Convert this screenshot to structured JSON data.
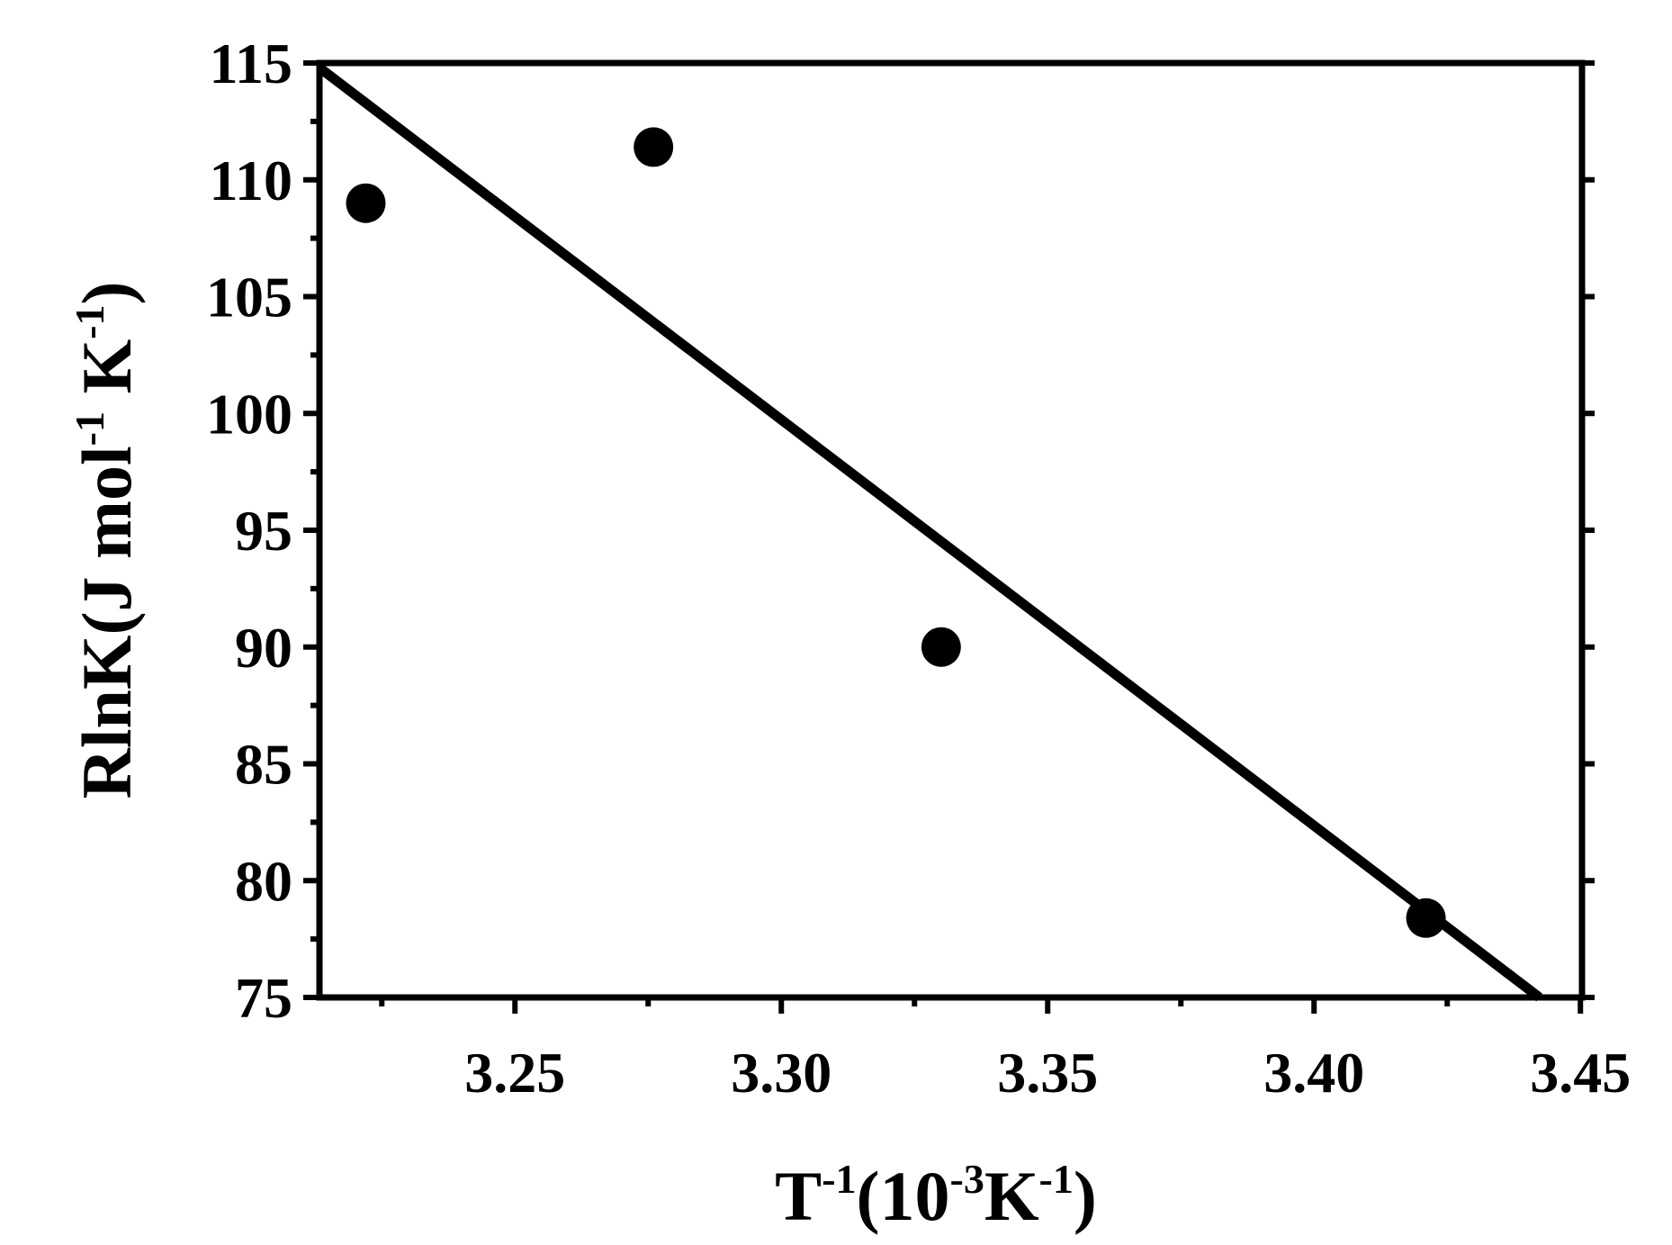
{
  "chart_data": {
    "type": "scatter",
    "xlabel": {
      "main": "T",
      "sup1": "-1",
      "mid": "(10",
      "sup2": "-3",
      "mid2": "K",
      "sup3": "-1",
      "end": ")"
    },
    "ylabel": {
      "main": "RlnK(J mol",
      "sup1": "-1",
      "mid": " K",
      "sup2": "-1",
      "end": ")"
    },
    "xlim": [
      3.2133,
      3.4503
    ],
    "ylim": [
      75,
      115
    ],
    "xticks": [
      3.25,
      3.3,
      3.35,
      3.4,
      3.45
    ],
    "xtick_labels": [
      "3.25",
      "3.30",
      "3.35",
      "3.40",
      "3.45"
    ],
    "yticks": [
      75,
      80,
      85,
      90,
      95,
      100,
      105,
      110,
      115
    ],
    "ytick_labels": [
      "75",
      "80",
      "85",
      "90",
      "95",
      "100",
      "105",
      "110",
      "115"
    ],
    "series": [
      {
        "points": [
          {
            "x": 3.222,
            "y": 109.0
          },
          {
            "x": 3.276,
            "y": 111.4
          },
          {
            "x": 3.33,
            "y": 90.0
          },
          {
            "x": 3.421,
            "y": 78.4
          }
        ]
      }
    ],
    "fit_line": {
      "x": [
        3.2133,
        3.4423
      ],
      "y": [
        114.8,
        75.0
      ]
    },
    "colors": {
      "marker": "#000000",
      "line": "#000000",
      "axes": "#000000"
    },
    "grid": false
  }
}
